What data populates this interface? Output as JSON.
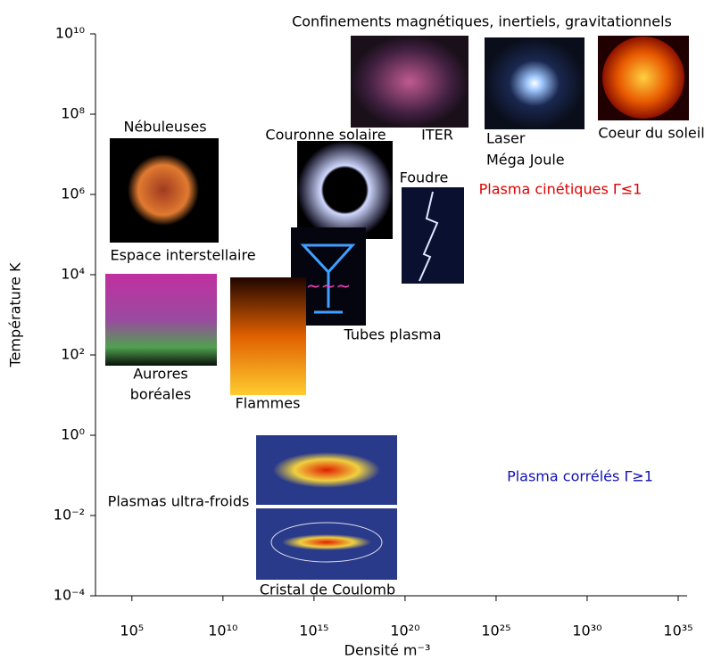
{
  "chart_data": {
    "type": "annotated-log-plot",
    "x_label": "Densité m⁻³",
    "y_label": "Température K",
    "xlog": true,
    "ylog": true,
    "xlim": [
      1000,
      1e+35
    ],
    "ylim": [
      0.0001,
      10000000000
    ],
    "xticks": [
      {
        "value": 100000,
        "label": "10⁵"
      },
      {
        "value": 10000000000,
        "label": "10¹⁰"
      },
      {
        "value": 1000000000000000.0,
        "label": "10¹⁵"
      },
      {
        "value": 1e+20,
        "label": "10²⁰"
      },
      {
        "value": 1e+25,
        "label": "10²⁵"
      },
      {
        "value": 1e+30,
        "label": "10³⁰"
      },
      {
        "value": 1e+35,
        "label": "10³⁵"
      }
    ],
    "yticks": [
      {
        "value": 0.0001,
        "label": "10⁻⁴"
      },
      {
        "value": 0.01,
        "label": "10⁻²"
      },
      {
        "value": 1,
        "label": "10⁰"
      },
      {
        "value": 100,
        "label": "10²"
      },
      {
        "value": 10000,
        "label": "10⁴"
      },
      {
        "value": 1000000,
        "label": "10⁶"
      },
      {
        "value": 100000000,
        "label": "10⁸"
      },
      {
        "value": 10000000000,
        "label": "10¹⁰"
      }
    ],
    "annotations": [
      {
        "text": "Confinements magnétiques, inertiels, gravitationnels",
        "color": "#000000"
      },
      {
        "text": "Nébuleuses",
        "color": "#000000"
      },
      {
        "text": "Couronne solaire",
        "color": "#000000"
      },
      {
        "text": "ITER",
        "color": "#000000"
      },
      {
        "text": "Laser",
        "color": "#000000"
      },
      {
        "text": "Méga Joule",
        "color": "#000000"
      },
      {
        "text": "Coeur du soleil",
        "color": "#000000"
      },
      {
        "text": "Foudre",
        "color": "#000000"
      },
      {
        "text": "Plasma cinétiques Γ≤1",
        "color": "#e00000"
      },
      {
        "text": "Espace interstellaire",
        "color": "#000000"
      },
      {
        "text": "Tubes plasma",
        "color": "#000000"
      },
      {
        "text": "Aurores",
        "color": "#000000"
      },
      {
        "text": "boréales",
        "color": "#000000"
      },
      {
        "text": "Flammes",
        "color": "#000000"
      },
      {
        "text": "Plasma corrélés Γ≥1",
        "color": "#1010b0"
      },
      {
        "text": "Plasmas ultra-froids",
        "color": "#000000"
      },
      {
        "text": "Cristal de Coulomb",
        "color": "#000000"
      }
    ]
  }
}
